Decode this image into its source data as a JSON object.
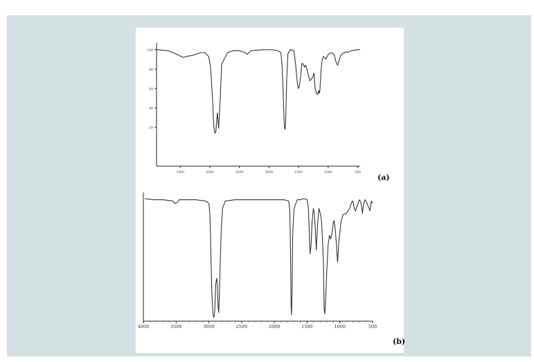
{
  "figure": {
    "background": "#d3e1e3",
    "paper": "#ffffff",
    "line_color": "#333333"
  },
  "chart_data": [
    {
      "type": "line",
      "panel_label": "(a)",
      "xlabel": "",
      "ylabel": "",
      "xlim": [
        3900,
        460
      ],
      "ylim": [
        -20,
        107
      ],
      "x_ticks": [
        3500,
        3000,
        2500,
        2000,
        1500,
        1000,
        500
      ],
      "y_ticks": [
        20,
        40,
        60,
        80,
        100
      ],
      "grid": false,
      "series": [
        {
          "x": [
            3900,
            3700,
            3550,
            3450,
            3400,
            3300,
            3150,
            3080,
            3020,
            2995,
            2985,
            2970,
            2960,
            2950,
            2940,
            2930,
            2920,
            2910,
            2900,
            2895,
            2880,
            2870,
            2860,
            2850,
            2840,
            2820,
            2800,
            2700,
            2600,
            2500,
            2400,
            2370,
            2340,
            2300,
            2100,
            1950,
            1850,
            1800,
            1780,
            1760,
            1750,
            1740,
            1730,
            1720,
            1700,
            1680,
            1640,
            1580,
            1550,
            1520,
            1505,
            1490,
            1470,
            1455,
            1440,
            1420,
            1400,
            1380,
            1360,
            1340,
            1310,
            1280,
            1260,
            1240,
            1220,
            1200,
            1180,
            1160,
            1150,
            1140,
            1120,
            1100,
            1080,
            1060,
            1040,
            1000,
            950,
            920,
            900,
            880,
            860,
            840,
            820,
            790,
            760,
            720,
            700,
            680,
            600,
            500,
            460
          ],
          "y": [
            100,
            99,
            95,
            92,
            93,
            94,
            97,
            97,
            93,
            85,
            80,
            65,
            55,
            45,
            30,
            20,
            15,
            14,
            15,
            18,
            30,
            35,
            25,
            19,
            30,
            55,
            85,
            97,
            99,
            99,
            97,
            95,
            97,
            99,
            100,
            100,
            99,
            97,
            85,
            55,
            35,
            20,
            18,
            21,
            70,
            96,
            100,
            99,
            85,
            65,
            60,
            62,
            70,
            80,
            86,
            85,
            82,
            84,
            80,
            75,
            68,
            70,
            72,
            76,
            60,
            55,
            54,
            58,
            55,
            58,
            80,
            90,
            93,
            92,
            90,
            95,
            97,
            96,
            95,
            90,
            86,
            84,
            88,
            94,
            96,
            97,
            98,
            97,
            99,
            100,
            100
          ]
        }
      ]
    },
    {
      "type": "line",
      "panel_label": "(b)",
      "xlabel": "",
      "ylabel": "",
      "xlim": [
        4000,
        500
      ],
      "ylim": [
        0,
        105
      ],
      "x_ticks": [
        4000,
        3500,
        3000,
        2500,
        2000,
        1500,
        1000,
        500
      ],
      "x_tick_labels": [
        "4000",
        "3500",
        "3000",
        "2500",
        "2000",
        "1500",
        "1000",
        "500"
      ],
      "grid": false,
      "series": [
        {
          "x": [
            3980,
            3850,
            3700,
            3550,
            3520,
            3480,
            3450,
            3400,
            3200,
            3050,
            3000,
            2985,
            2975,
            2965,
            2955,
            2945,
            2935,
            2925,
            2915,
            2905,
            2895,
            2880,
            2870,
            2860,
            2850,
            2840,
            2825,
            2810,
            2790,
            2750,
            2600,
            2400,
            2200,
            2000,
            1850,
            1780,
            1765,
            1752,
            1745,
            1738,
            1730,
            1720,
            1700,
            1650,
            1600,
            1550,
            1500,
            1480,
            1465,
            1455,
            1440,
            1425,
            1405,
            1390,
            1375,
            1360,
            1340,
            1320,
            1300,
            1280,
            1265,
            1250,
            1240,
            1230,
            1220,
            1200,
            1180,
            1160,
            1140,
            1120,
            1100,
            1090,
            1070,
            1050,
            1035,
            1025,
            1015,
            1000,
            980,
            950,
            900,
            850,
            820,
            800,
            780,
            760,
            730,
            700,
            680,
            665,
            655,
            640,
            620,
            600,
            570,
            540,
            520,
            500
          ],
          "y": [
            100,
            99,
            99,
            98,
            96,
            97,
            99,
            99,
            99,
            98,
            96,
            88,
            70,
            45,
            25,
            12,
            5,
            3,
            5,
            15,
            30,
            35,
            30,
            12,
            7,
            20,
            50,
            75,
            92,
            98,
            99,
            99,
            99,
            99,
            99,
            98,
            90,
            50,
            12,
            5,
            25,
            70,
            92,
            99,
            99,
            100,
            99,
            92,
            70,
            55,
            62,
            80,
            92,
            88,
            75,
            58,
            80,
            92,
            88,
            82,
            65,
            45,
            10,
            6,
            15,
            40,
            62,
            70,
            67,
            72,
            80,
            82,
            75,
            60,
            48,
            56,
            65,
            72,
            82,
            87,
            88,
            92,
            97,
            98,
            92,
            90,
            95,
            99,
            97,
            92,
            88,
            95,
            99,
            98,
            94,
            90,
            98,
            96
          ]
        }
      ]
    }
  ]
}
